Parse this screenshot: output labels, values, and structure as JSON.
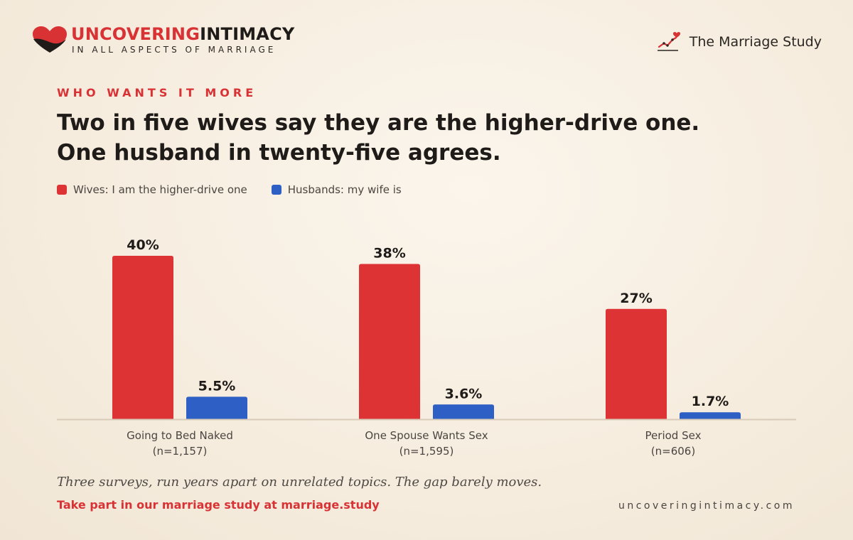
{
  "brand": {
    "name_part1": "UNCOVERING",
    "name_part2": "INTIMACY",
    "tagline": "IN ALL ASPECTS OF MARRIAGE",
    "logo_icon": "heart-icon"
  },
  "study": {
    "label": "The Marriage Study",
    "icon": "trend-heart-icon"
  },
  "kicker": "WHO WANTS IT MORE",
  "title_lines": [
    "Two in five wives say they are the higher-drive one.",
    "One husband in twenty-five agrees."
  ],
  "colors": {
    "wives": "#de3334",
    "husbands": "#2d5fc4",
    "baseline": "#d8cbb8",
    "accent": "#d93235"
  },
  "chart_data": {
    "type": "bar",
    "categories": [
      "Going to Bed Naked",
      "One Spouse Wants Sex",
      "Period Sex"
    ],
    "category_notes": [
      "(n=1,157)",
      "(n=1,595)",
      "(n=606)"
    ],
    "series": [
      {
        "name": "Wives: I am the higher-drive one",
        "values": [
          40,
          38,
          27
        ],
        "labels": [
          "40%",
          "38%",
          "27%"
        ]
      },
      {
        "name": "Husbands: my wife is",
        "values": [
          5.5,
          3.6,
          1.7
        ],
        "labels": [
          "5.5%",
          "3.6%",
          "1.7%"
        ]
      }
    ],
    "unit": "%",
    "ylim": [
      0,
      40
    ],
    "grid": false,
    "legend_position": "top-left"
  },
  "footer": {
    "note": "Three surveys, run years apart on unrelated topics. The gap barely moves.",
    "cta": "Take part in our marriage study at marriage.study",
    "site": "uncoveringintimacy.com"
  }
}
